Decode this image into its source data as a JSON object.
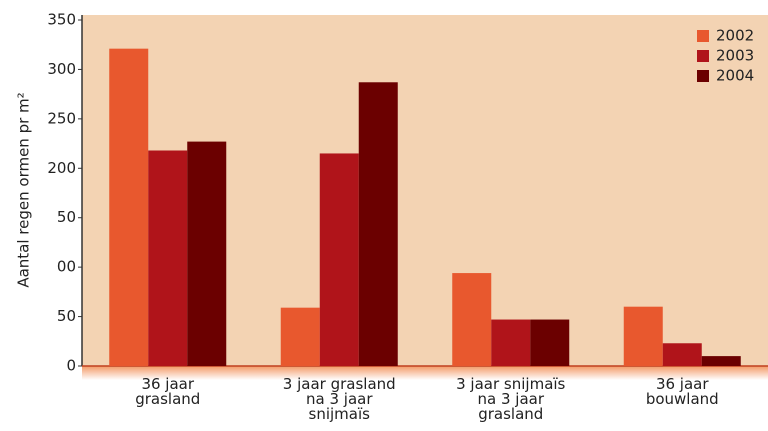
{
  "chart_data": {
    "type": "bar",
    "y_label": "Aantal regen  ormen pr m²",
    "categories": [
      [
        "36 jaar",
        "grasland"
      ],
      [
        "3 jaar grasland",
        "na 3 jaar",
        "snijmaïs"
      ],
      [
        "3 jaar snijmaïs",
        "na 3 jaar",
        "grasland"
      ],
      [
        "36 jaar",
        "bouwland"
      ]
    ],
    "series": [
      {
        "name": "2002",
        "color": "#e8582e",
        "values": [
          321,
          59,
          94,
          60
        ]
      },
      {
        "name": "2003",
        "color": "#b0141a",
        "values": [
          218,
          215,
          47,
          23
        ]
      },
      {
        "name": "2004",
        "color": "#6b0000",
        "values": [
          227,
          287,
          47,
          10
        ]
      }
    ],
    "ylim": [
      0,
      350
    ],
    "yticks": [
      0,
      50,
      {
        "value": 100,
        "label": "00"
      },
      {
        "value": 150,
        "label": "50"
      },
      200,
      250,
      300,
      350
    ],
    "legend": "top-right"
  }
}
